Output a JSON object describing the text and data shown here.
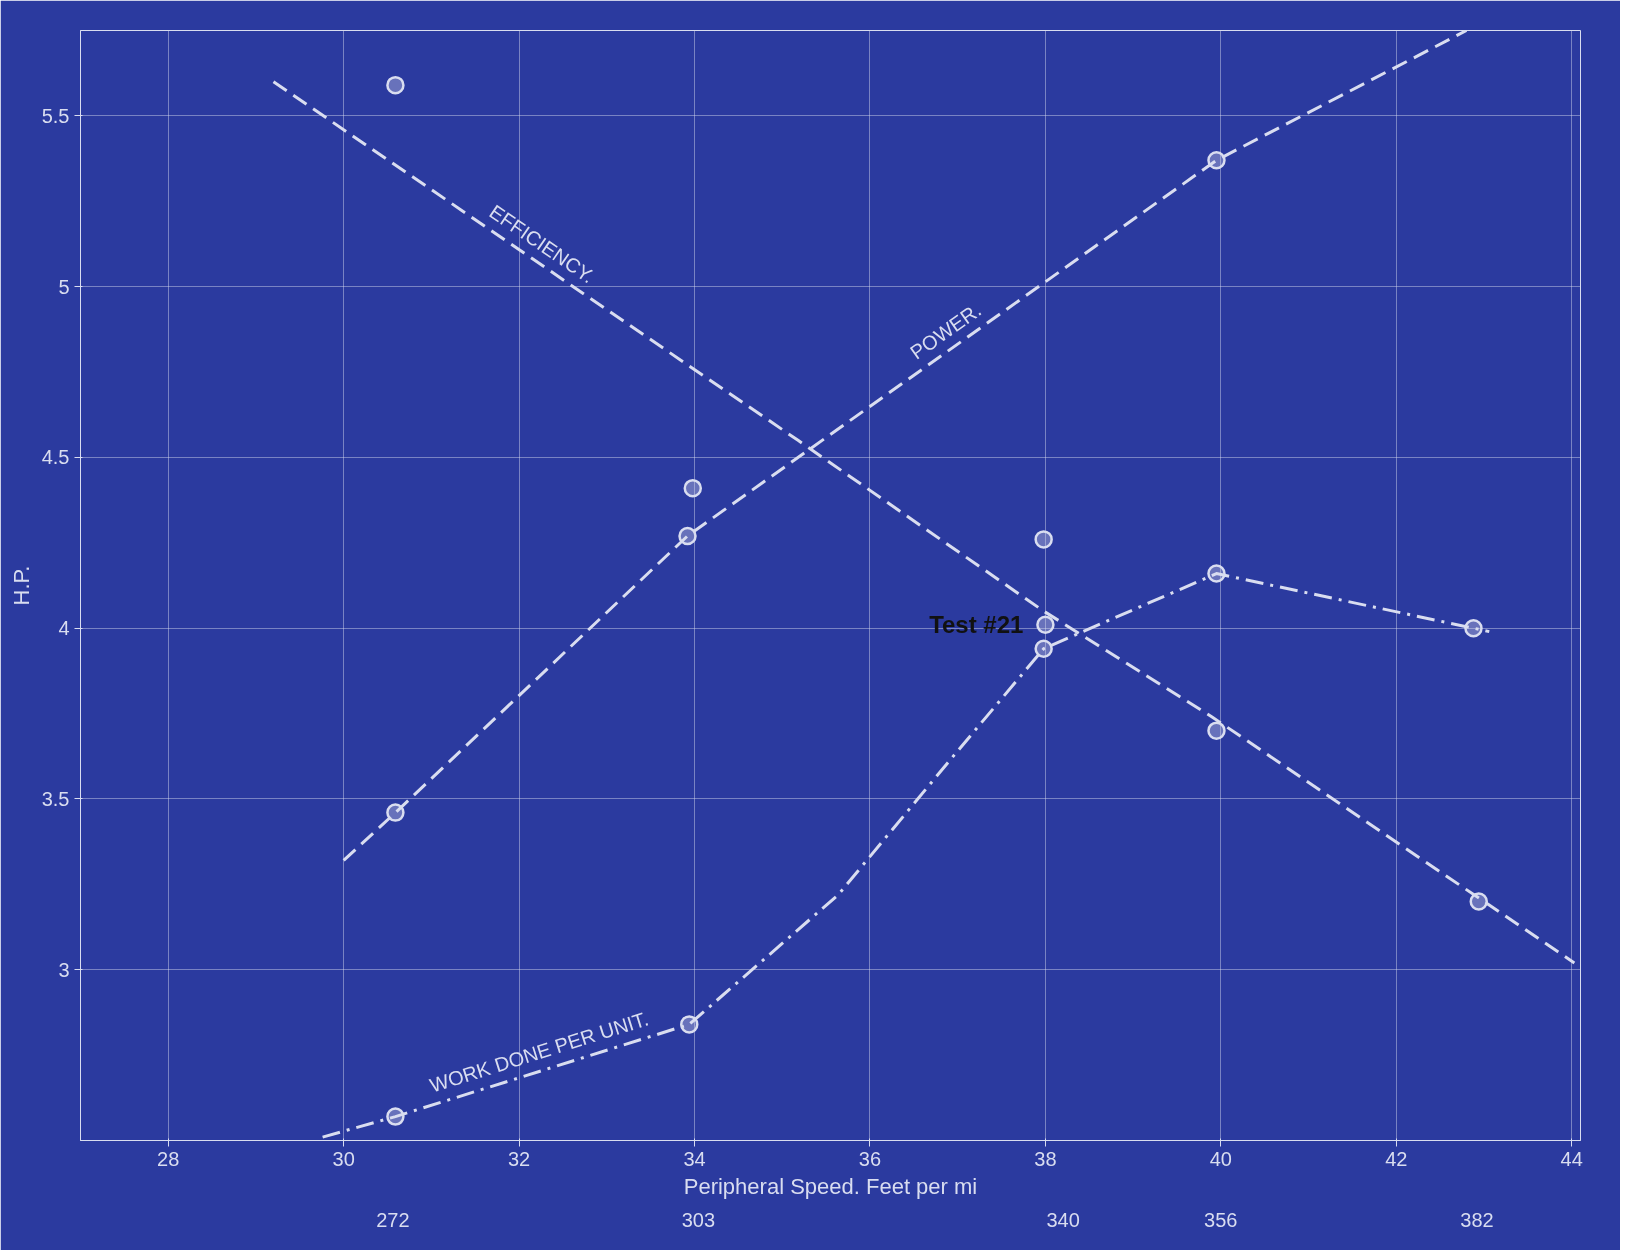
{
  "chart_data": {
    "type": "line",
    "ylabel": "H.P.",
    "xlabel": "Peripheral Speed. Feet per mi",
    "xlim": [
      27,
      44.1
    ],
    "ylim": [
      2.5,
      5.75
    ],
    "xticks": [
      28,
      30,
      32,
      34,
      36,
      38,
      40,
      42,
      44
    ],
    "yticks": [
      3.0,
      3.5,
      4.0,
      4.5,
      5.0,
      5.5
    ],
    "x2lim": [
      240.3,
      392.5
    ],
    "x2ticks": [
      272,
      303,
      340,
      356,
      382
    ],
    "grid": true,
    "series": [
      {
        "name": "EFFICIENCY.",
        "line_style": "dashed",
        "marker": "none",
        "color": "#d9ddf0",
        "x": [
          29.2,
          35.18,
          37.98,
          39.9,
          44.03
        ],
        "values": [
          5.6,
          4.55,
          4.05,
          3.74,
          3.02
        ]
      },
      {
        "type": "scatter",
        "marker": "circle",
        "color": "#d9ddf0",
        "x": [
          30.59,
          33.98,
          37.98,
          39.95,
          42.94
        ],
        "values": [
          5.59,
          4.41,
          4.26,
          3.7,
          3.2
        ]
      },
      {
        "name": "POWER.",
        "line_style": "dashed",
        "marker": "none",
        "color": "#d9ddf0",
        "x": [
          30.0,
          30.59,
          33.92,
          39.95,
          42.8
        ],
        "values": [
          3.32,
          3.46,
          4.27,
          5.37,
          5.75
        ]
      },
      {
        "type": "scatter",
        "marker": "circle",
        "color": "#d9ddf0",
        "x": [
          30.59,
          33.92,
          39.95
        ],
        "values": [
          3.46,
          4.27,
          5.37
        ]
      },
      {
        "name": "WORK DONE PER UNIT.",
        "line_style": "dashdot",
        "marker": "none",
        "color": "#d9ddf0",
        "x": [
          29.76,
          30.59,
          33.94,
          35.64,
          36.9,
          37.98,
          39.95,
          42.88,
          43.06
        ],
        "values": [
          2.51,
          2.57,
          2.84,
          3.22,
          3.61,
          3.94,
          4.16,
          4.0,
          3.99
        ]
      },
      {
        "type": "scatter",
        "marker": "circle",
        "color": "#d9ddf0",
        "x": [
          30.59,
          33.94,
          37.98,
          39.95,
          42.88,
          38.0
        ],
        "values": [
          2.57,
          2.84,
          3.94,
          4.16,
          4.0,
          4.01
        ]
      }
    ],
    "annotations": [
      {
        "text": "Test #21",
        "x": 38.0,
        "y": 4.01
      }
    ]
  }
}
